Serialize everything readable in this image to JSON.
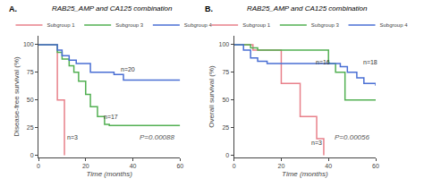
{
  "chart_data": [
    {
      "type": "step",
      "panel_label": "A.",
      "title": "RAB25_AMP and CA125 combination",
      "x_label": "Time (months)",
      "y_label": "Disease-free survival (%)",
      "xlim": [
        0,
        60
      ],
      "ylim": [
        -2,
        108
      ],
      "xticks": [
        0,
        20,
        40,
        60
      ],
      "yticks": [
        0,
        25,
        50,
        75,
        100
      ],
      "grid": false,
      "legend": "top",
      "series": [
        {
          "name": "Subgroup 1",
          "color": "#e8808a",
          "x": [
            0,
            5,
            8,
            11,
            11
          ],
          "values": [
            100,
            100,
            50,
            50,
            0
          ]
        },
        {
          "name": "Subgroup 3",
          "color": "#52b052",
          "x": [
            0,
            5,
            8,
            10,
            13,
            15,
            17,
            20,
            22,
            25,
            28,
            30,
            60
          ],
          "values": [
            100,
            100,
            93,
            87,
            81,
            75,
            67,
            55,
            44,
            35,
            28,
            27,
            27
          ]
        },
        {
          "name": "Subgroup 4",
          "color": "#4a6fd4",
          "x": [
            0,
            6,
            8,
            10,
            13,
            16,
            22,
            32,
            36,
            60
          ],
          "values": [
            100,
            100,
            95,
            90,
            86,
            83,
            75,
            73,
            68,
            68
          ]
        }
      ],
      "annotations": [
        {
          "x": 11.5,
          "y": 12,
          "text": "n=3"
        },
        {
          "x": 27,
          "y": 30,
          "text": "n=17"
        },
        {
          "x": 34,
          "y": 73,
          "text": "n=20"
        }
      ],
      "pvalue": "P=0.00088"
    },
    {
      "type": "step",
      "panel_label": "B.",
      "title": "RAB25_AMP and CA125 combination",
      "x_label": "Time (months)",
      "y_label": "Overall survival (%)",
      "xlim": [
        0,
        60
      ],
      "ylim": [
        -2,
        108
      ],
      "xticks": [
        0,
        20,
        40,
        60
      ],
      "yticks": [
        0,
        25,
        50,
        75,
        100
      ],
      "grid": false,
      "legend": "top",
      "series": [
        {
          "name": "Subgroup 1",
          "color": "#e8808a",
          "x": [
            0,
            3,
            8,
            20,
            23,
            28,
            32,
            35,
            38,
            38
          ],
          "values": [
            100,
            100,
            95,
            65,
            65,
            35,
            35,
            15,
            15,
            0
          ]
        },
        {
          "name": "Subgroup 3",
          "color": "#52b052",
          "x": [
            0,
            4,
            7,
            10,
            36,
            40,
            43,
            47,
            60
          ],
          "values": [
            100,
            100,
            97,
            95,
            95,
            83,
            75,
            50,
            50
          ]
        },
        {
          "name": "Subgroup 4",
          "color": "#4a6fd4",
          "x": [
            0,
            4,
            7,
            10,
            14,
            45,
            48,
            52,
            55,
            60
          ],
          "values": [
            100,
            95,
            88,
            85,
            83,
            80,
            75,
            70,
            65,
            63
          ]
        }
      ],
      "annotations": [
        {
          "x": 32,
          "y": 7,
          "text": "n=3"
        },
        {
          "x": 34,
          "y": 80,
          "text": "n=16"
        },
        {
          "x": 54,
          "y": 80,
          "text": "n=18"
        }
      ],
      "pvalue": "P=0.00056"
    }
  ]
}
